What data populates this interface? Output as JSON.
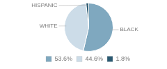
{
  "chart_data": {
    "type": "pie",
    "categories": [
      "BLACK",
      "WHITE",
      "HISPANIC"
    ],
    "values": [
      53.6,
      44.6,
      1.8
    ],
    "value_labels": [
      "53.6%",
      "44.6%",
      "1.8%"
    ],
    "colors": [
      "#7fa8bf",
      "#ccdce8",
      "#2b5a72"
    ],
    "legend": "lower left"
  }
}
